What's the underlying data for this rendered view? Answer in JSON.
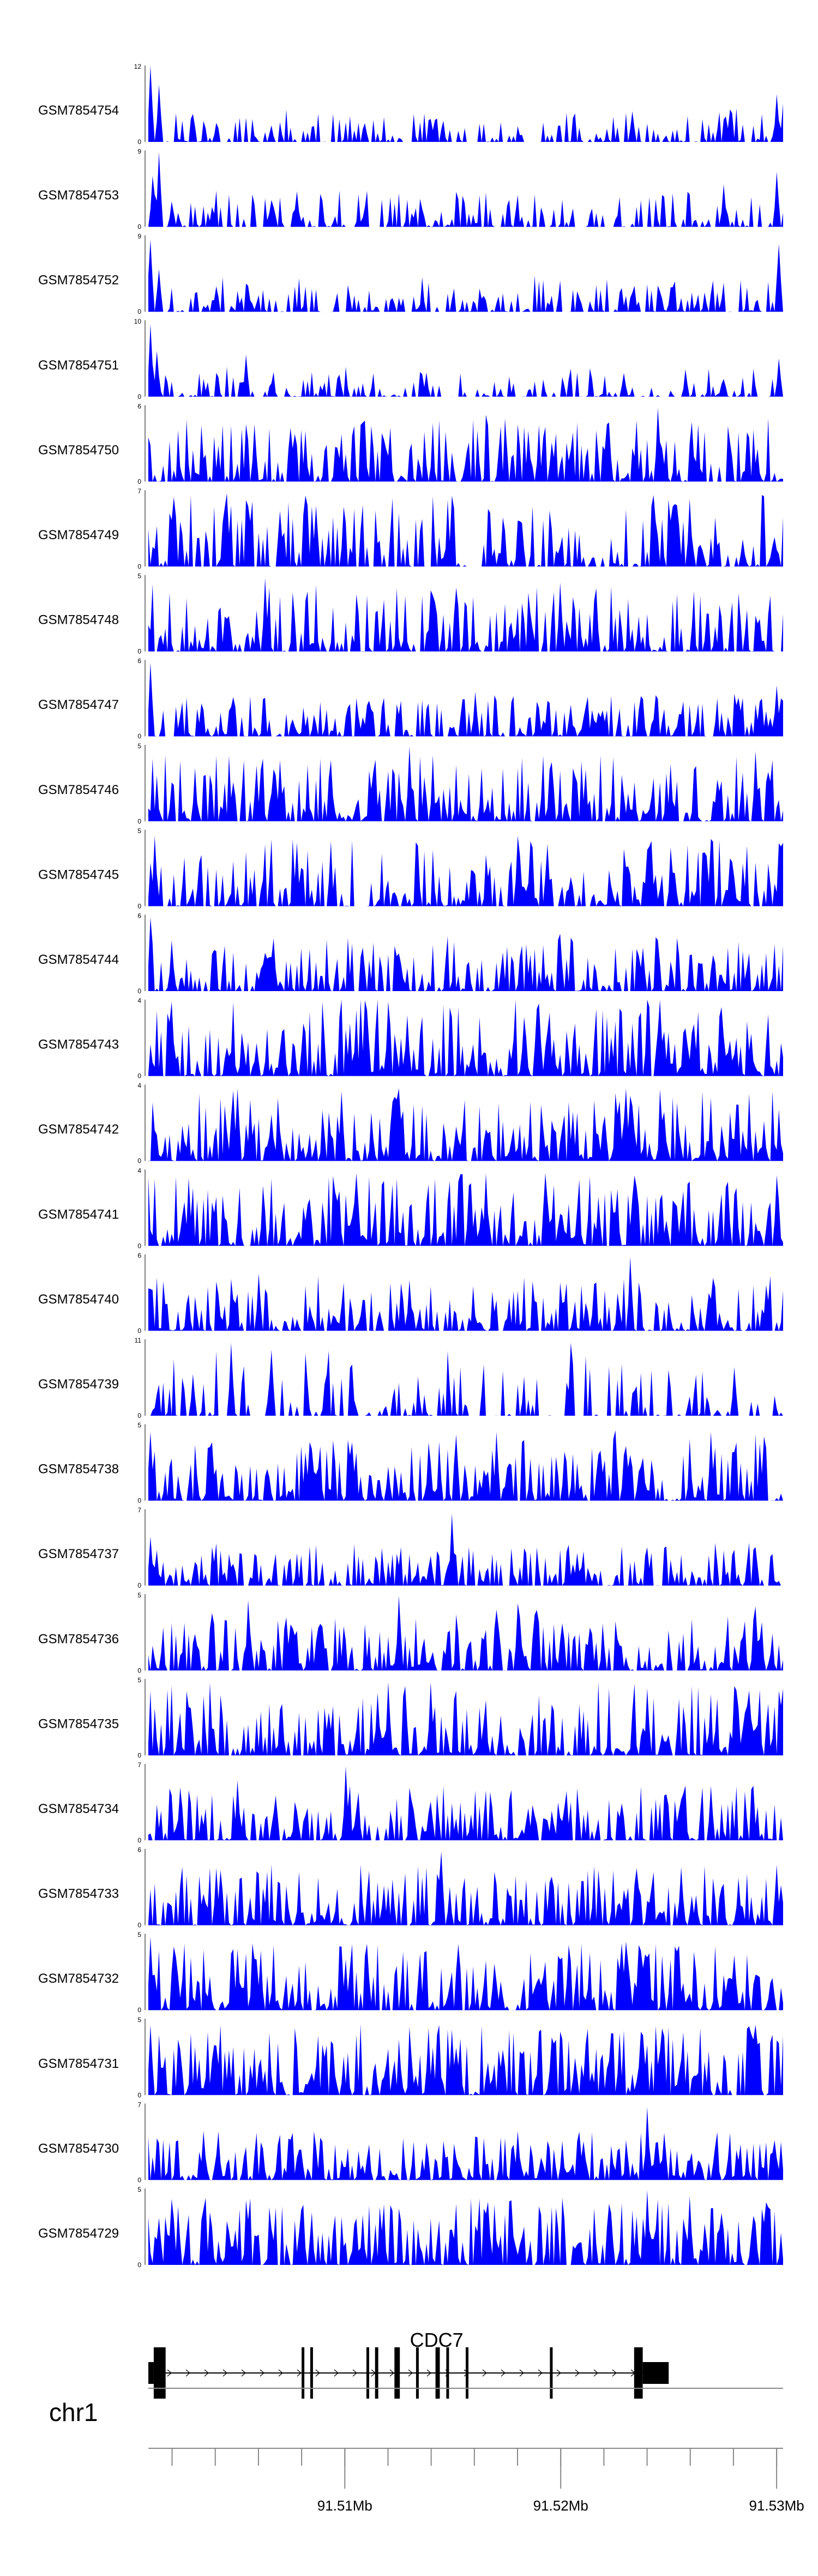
{
  "colors": {
    "signal": "#0000ff",
    "axis": "#000000",
    "gene": "#000000",
    "scale_line": "#888888"
  },
  "chart_data": {
    "type": "area",
    "title": "",
    "genome": {
      "chromosome": "chr1",
      "x_start": 91.5009,
      "x_end": 91.5303,
      "units": "Mb"
    },
    "tracks": [
      {
        "name": "GSM7854754",
        "ymax": 12,
        "seed": 1,
        "density": 0.55,
        "scale": 0.28,
        "peaks": [
          [
            91.501,
            12
          ],
          [
            91.5014,
            9
          ],
          [
            91.504,
            3
          ],
          [
            91.53,
            7.5
          ],
          [
            91.5303,
            6
          ]
        ]
      },
      {
        "name": "GSM7854753",
        "ymax": 9,
        "seed": 2,
        "density": 0.6,
        "scale": 0.3,
        "peaks": [
          [
            91.5014,
            8.8
          ],
          [
            91.5011,
            6
          ],
          [
            91.502,
            3
          ],
          [
            91.53,
            6.5
          ],
          [
            91.5275,
            5
          ]
        ]
      },
      {
        "name": "GSM7854752",
        "ymax": 9,
        "seed": 3,
        "density": 0.6,
        "scale": 0.3,
        "peaks": [
          [
            91.501,
            8.5
          ],
          [
            91.5014,
            5
          ],
          [
            91.5301,
            8
          ],
          [
            91.504,
            3
          ]
        ]
      },
      {
        "name": "GSM7854751",
        "ymax": 10,
        "seed": 4,
        "density": 0.55,
        "scale": 0.25,
        "peaks": [
          [
            91.501,
            9.5
          ],
          [
            91.5013,
            6
          ],
          [
            91.5054,
            5.5
          ],
          [
            91.5301,
            5
          ]
        ]
      },
      {
        "name": "GSM7854750",
        "ymax": 6,
        "seed": 5,
        "density": 0.85,
        "scale": 0.55,
        "peaks": [
          [
            91.5245,
            5.8
          ],
          [
            91.5058,
            4.5
          ],
          [
            91.5185,
            4
          ]
        ]
      },
      {
        "name": "GSM7854749",
        "ymax": 7,
        "seed": 6,
        "density": 0.7,
        "scale": 0.6,
        "peaks": [
          [
            91.5045,
            6.7
          ],
          [
            91.5082,
            6.5
          ],
          [
            91.515,
            6.5
          ],
          [
            91.526,
            6.2
          ]
        ]
      },
      {
        "name": "GSM7854748",
        "ymax": 5,
        "seed": 7,
        "density": 0.75,
        "scale": 0.55,
        "peaks": [
          [
            91.5063,
            4.8
          ],
          [
            91.52,
            4.5
          ],
          [
            91.514,
            4
          ]
        ]
      },
      {
        "name": "GSM7854747",
        "ymax": 6,
        "seed": 8,
        "density": 0.8,
        "scale": 0.35,
        "peaks": [
          [
            91.501,
            5.8
          ],
          [
            91.516,
            3.5
          ],
          [
            91.53,
            4
          ]
        ]
      },
      {
        "name": "GSM7854746",
        "ymax": 5,
        "seed": 9,
        "density": 0.85,
        "scale": 0.55,
        "peaks": [
          [
            91.513,
            4.9
          ],
          [
            91.529,
            4.6
          ],
          [
            91.507,
            4
          ]
        ]
      },
      {
        "name": "GSM7854745",
        "ymax": 5,
        "seed": 10,
        "density": 0.8,
        "scale": 0.55,
        "peaks": [
          [
            91.5012,
            4.6
          ],
          [
            91.518,
            4.6
          ],
          [
            91.527,
            4.4
          ]
        ]
      },
      {
        "name": "GSM7854744",
        "ymax": 6,
        "seed": 11,
        "density": 0.85,
        "scale": 0.45,
        "peaks": [
          [
            91.501,
            5.8
          ],
          [
            91.52,
            4.5
          ],
          [
            91.502,
            4
          ]
        ]
      },
      {
        "name": "GSM7854743",
        "ymax": 4,
        "seed": 12,
        "density": 0.95,
        "scale": 0.65,
        "peaks": [
          [
            91.502,
            3.9
          ],
          [
            91.512,
            3.9
          ],
          [
            91.519,
            3.8
          ]
        ]
      },
      {
        "name": "GSM7854742",
        "ymax": 4,
        "seed": 13,
        "density": 0.95,
        "scale": 0.6,
        "peaks": [
          [
            91.505,
            3.8
          ],
          [
            91.5125,
            3.8
          ],
          [
            91.523,
            3.8
          ]
        ]
      },
      {
        "name": "GSM7854741",
        "ymax": 4,
        "seed": 14,
        "density": 0.9,
        "scale": 0.6,
        "peaks": [
          [
            91.5105,
            3.8
          ],
          [
            91.5165,
            3.8
          ],
          [
            91.53,
            3.7
          ]
        ]
      },
      {
        "name": "GSM7854740",
        "ymax": 6,
        "seed": 15,
        "density": 0.75,
        "scale": 0.45,
        "peaks": [
          [
            91.5232,
            5.8
          ],
          [
            91.506,
            4.5
          ],
          [
            91.513,
            4
          ]
        ]
      },
      {
        "name": "GSM7854739",
        "ymax": 11,
        "seed": 16,
        "density": 0.45,
        "scale": 0.55,
        "peaks": [
          [
            91.5047,
            10.5
          ],
          [
            91.5205,
            10.5
          ],
          [
            91.5066,
            9.5
          ],
          [
            91.503,
            6
          ],
          [
            91.528,
            7
          ]
        ]
      },
      {
        "name": "GSM7854738",
        "ymax": 5,
        "seed": 17,
        "density": 0.85,
        "scale": 0.55,
        "peaks": [
          [
            91.501,
            4.5
          ],
          [
            91.517,
            4.5
          ],
          [
            91.5225,
            4.6
          ],
          [
            91.527,
            4.5
          ]
        ]
      },
      {
        "name": "GSM7854737",
        "ymax": 7,
        "seed": 18,
        "density": 0.8,
        "scale": 0.35,
        "peaks": [
          [
            91.515,
            6.6
          ],
          [
            91.501,
            4.5
          ],
          [
            91.524,
            3.5
          ]
        ]
      },
      {
        "name": "GSM7854736",
        "ymax": 5,
        "seed": 19,
        "density": 0.85,
        "scale": 0.5,
        "peaks": [
          [
            91.5055,
            4.6
          ],
          [
            91.5125,
            4.9
          ],
          [
            91.518,
            4.4
          ],
          [
            91.529,
            4.2
          ]
        ]
      },
      {
        "name": "GSM7854735",
        "ymax": 5,
        "seed": 20,
        "density": 0.9,
        "scale": 0.6,
        "peaks": [
          [
            91.512,
            4.8
          ],
          [
            91.514,
            4.8
          ],
          [
            91.524,
            4.4
          ]
        ]
      },
      {
        "name": "GSM7854734",
        "ymax": 7,
        "seed": 21,
        "density": 0.85,
        "scale": 0.45,
        "peaks": [
          [
            91.51,
            6.8
          ],
          [
            91.505,
            5.5
          ],
          [
            91.527,
            5
          ]
        ]
      },
      {
        "name": "GSM7854733",
        "ymax": 6,
        "seed": 22,
        "density": 0.9,
        "scale": 0.5,
        "peaks": [
          [
            91.5145,
            5.8
          ],
          [
            91.504,
            4.5
          ],
          [
            91.53,
            4
          ]
        ]
      },
      {
        "name": "GSM7854732",
        "ymax": 5,
        "seed": 23,
        "density": 0.9,
        "scale": 0.55,
        "peaks": [
          [
            91.501,
            4.8
          ],
          [
            91.523,
            4.5
          ],
          [
            91.505,
            4
          ]
        ]
      },
      {
        "name": "GSM7854731",
        "ymax": 5,
        "seed": 24,
        "density": 0.9,
        "scale": 0.6,
        "peaks": [
          [
            91.501,
            4.6
          ],
          [
            91.515,
            4.3
          ],
          [
            91.529,
            4.6
          ]
        ]
      },
      {
        "name": "GSM7854730",
        "ymax": 7,
        "seed": 25,
        "density": 0.9,
        "scale": 0.4,
        "peaks": [
          [
            91.524,
            6.7
          ],
          [
            91.5035,
            4.5
          ],
          [
            91.518,
            4.5
          ]
        ]
      },
      {
        "name": "GSM7854729",
        "ymax": 5,
        "seed": 26,
        "density": 0.9,
        "scale": 0.55,
        "peaks": [
          [
            91.524,
            4.9
          ],
          [
            91.502,
            4.2
          ],
          [
            91.526,
            4.5
          ]
        ]
      }
    ],
    "gene": {
      "name": "CDC7",
      "strand": "+",
      "start": 91.5009,
      "end": 91.525,
      "exons": [
        {
          "start": 91.5009,
          "end": 91.50115,
          "thick": false
        },
        {
          "start": 91.50115,
          "end": 91.5017,
          "thick": true
        },
        {
          "start": 91.508,
          "end": 91.5081,
          "thick": true
        },
        {
          "start": 91.5084,
          "end": 91.5085,
          "thick": true
        },
        {
          "start": 91.511,
          "end": 91.5111,
          "thick": true
        },
        {
          "start": 91.5114,
          "end": 91.51155,
          "thick": true
        },
        {
          "start": 91.5123,
          "end": 91.51255,
          "thick": true
        },
        {
          "start": 91.5133,
          "end": 91.5134,
          "thick": true
        },
        {
          "start": 91.5142,
          "end": 91.5144,
          "thick": true
        },
        {
          "start": 91.5147,
          "end": 91.5148,
          "thick": true
        },
        {
          "start": 91.5156,
          "end": 91.5157,
          "thick": true
        },
        {
          "start": 91.5195,
          "end": 91.5196,
          "thick": true
        },
        {
          "start": 91.5234,
          "end": 91.5238,
          "thick": true
        },
        {
          "start": 91.5238,
          "end": 91.525,
          "thick": false
        }
      ]
    },
    "axis": {
      "label": "chr1",
      "minor_ticks": [
        91.502,
        91.504,
        91.506,
        91.508,
        91.51,
        91.512,
        91.514,
        91.516,
        91.518,
        91.52,
        91.522,
        91.524,
        91.526,
        91.528,
        91.53
      ],
      "major_ticks": [
        91.51,
        91.52,
        91.53
      ],
      "tick_labels": [
        "91.51Mb",
        "91.52Mb",
        "91.53Mb"
      ]
    }
  }
}
